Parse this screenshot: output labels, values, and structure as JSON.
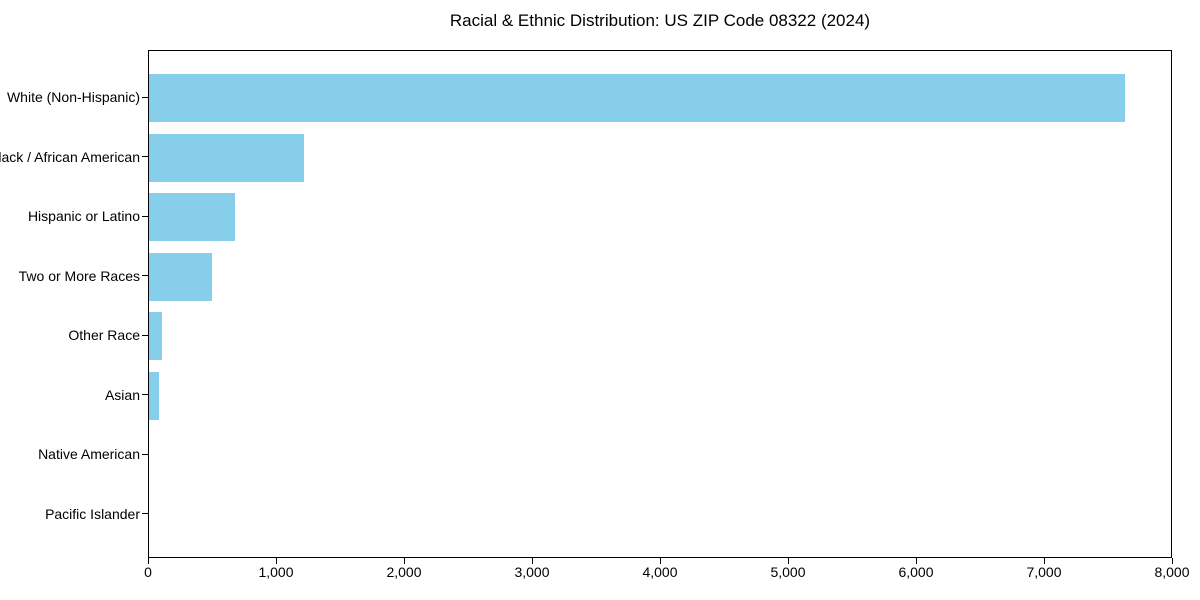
{
  "chart_data": {
    "type": "bar",
    "orientation": "horizontal",
    "title": "Racial & Ethnic Distribution: US ZIP Code 08322 (2024)",
    "categories": [
      "White (Non-Hispanic)",
      "Black / African American",
      "Hispanic or Latino",
      "Two or More Races",
      "Other Race",
      "Asian",
      "Native American",
      "Pacific Islander"
    ],
    "values": [
      7640,
      1210,
      670,
      490,
      100,
      80,
      0,
      0
    ],
    "xlabel": "",
    "ylabel": "",
    "xlim": [
      0,
      8000
    ],
    "x_ticks": [
      0,
      1000,
      2000,
      3000,
      4000,
      5000,
      6000,
      7000,
      8000
    ],
    "x_tick_labels": [
      "0",
      "1,000",
      "2,000",
      "3,000",
      "4,000",
      "5,000",
      "6,000",
      "7,000",
      "8,000"
    ],
    "bar_color": "#87CEEB",
    "text_color": "#000000",
    "grid": false,
    "legend": null
  }
}
